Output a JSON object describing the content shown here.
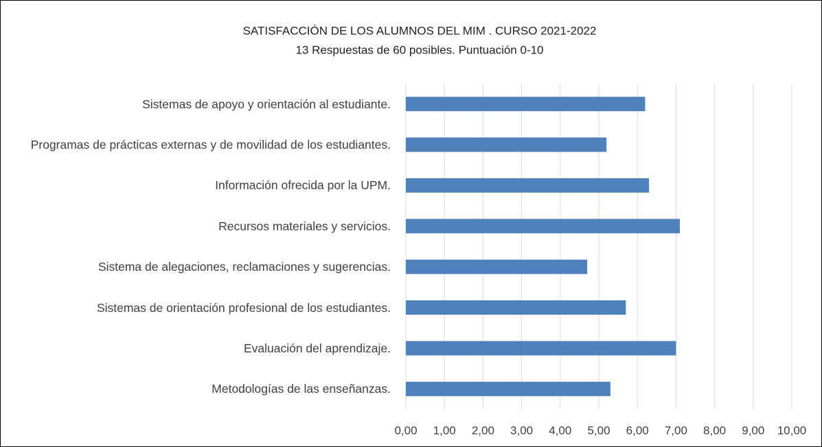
{
  "chart_data": {
    "type": "bar",
    "orientation": "horizontal",
    "title": "SATISFACCIÓN DE LOS ALUMNOS DEL MIM . CURSO 2021-2022",
    "subtitle": "13 Respuestas de 60 posibles.  Puntuación 0-10",
    "categories": [
      "Sistemas de apoyo y orientación al estudiante.",
      "Programas de prácticas externas y de movilidad de los estudiantes.",
      "Información ofrecida por la UPM.",
      "Recursos materiales y servicios.",
      "Sistema de alegaciones, reclamaciones y sugerencias.",
      "Sistemas de orientación profesional de los estudiantes.",
      "Evaluación del aprendizaje.",
      "Metodologías de las enseñanzas."
    ],
    "values": [
      6.2,
      5.2,
      6.3,
      7.1,
      4.7,
      5.7,
      7.0,
      5.3
    ],
    "color": "#4f81bd",
    "xlim": [
      0,
      10
    ],
    "xticks": [
      {
        "value": 0,
        "label": "0,00"
      },
      {
        "value": 1,
        "label": "1,00"
      },
      {
        "value": 2,
        "label": "2,00"
      },
      {
        "value": 3,
        "label": "3,00"
      },
      {
        "value": 4,
        "label": "4,00"
      },
      {
        "value": 5,
        "label": "5,00"
      },
      {
        "value": 6,
        "label": "6,00"
      },
      {
        "value": 7,
        "label": "7,00"
      },
      {
        "value": 8,
        "label": "8,00"
      },
      {
        "value": 9,
        "label": "9,00"
      },
      {
        "value": 10,
        "label": "10,00"
      }
    ],
    "grid": true
  }
}
